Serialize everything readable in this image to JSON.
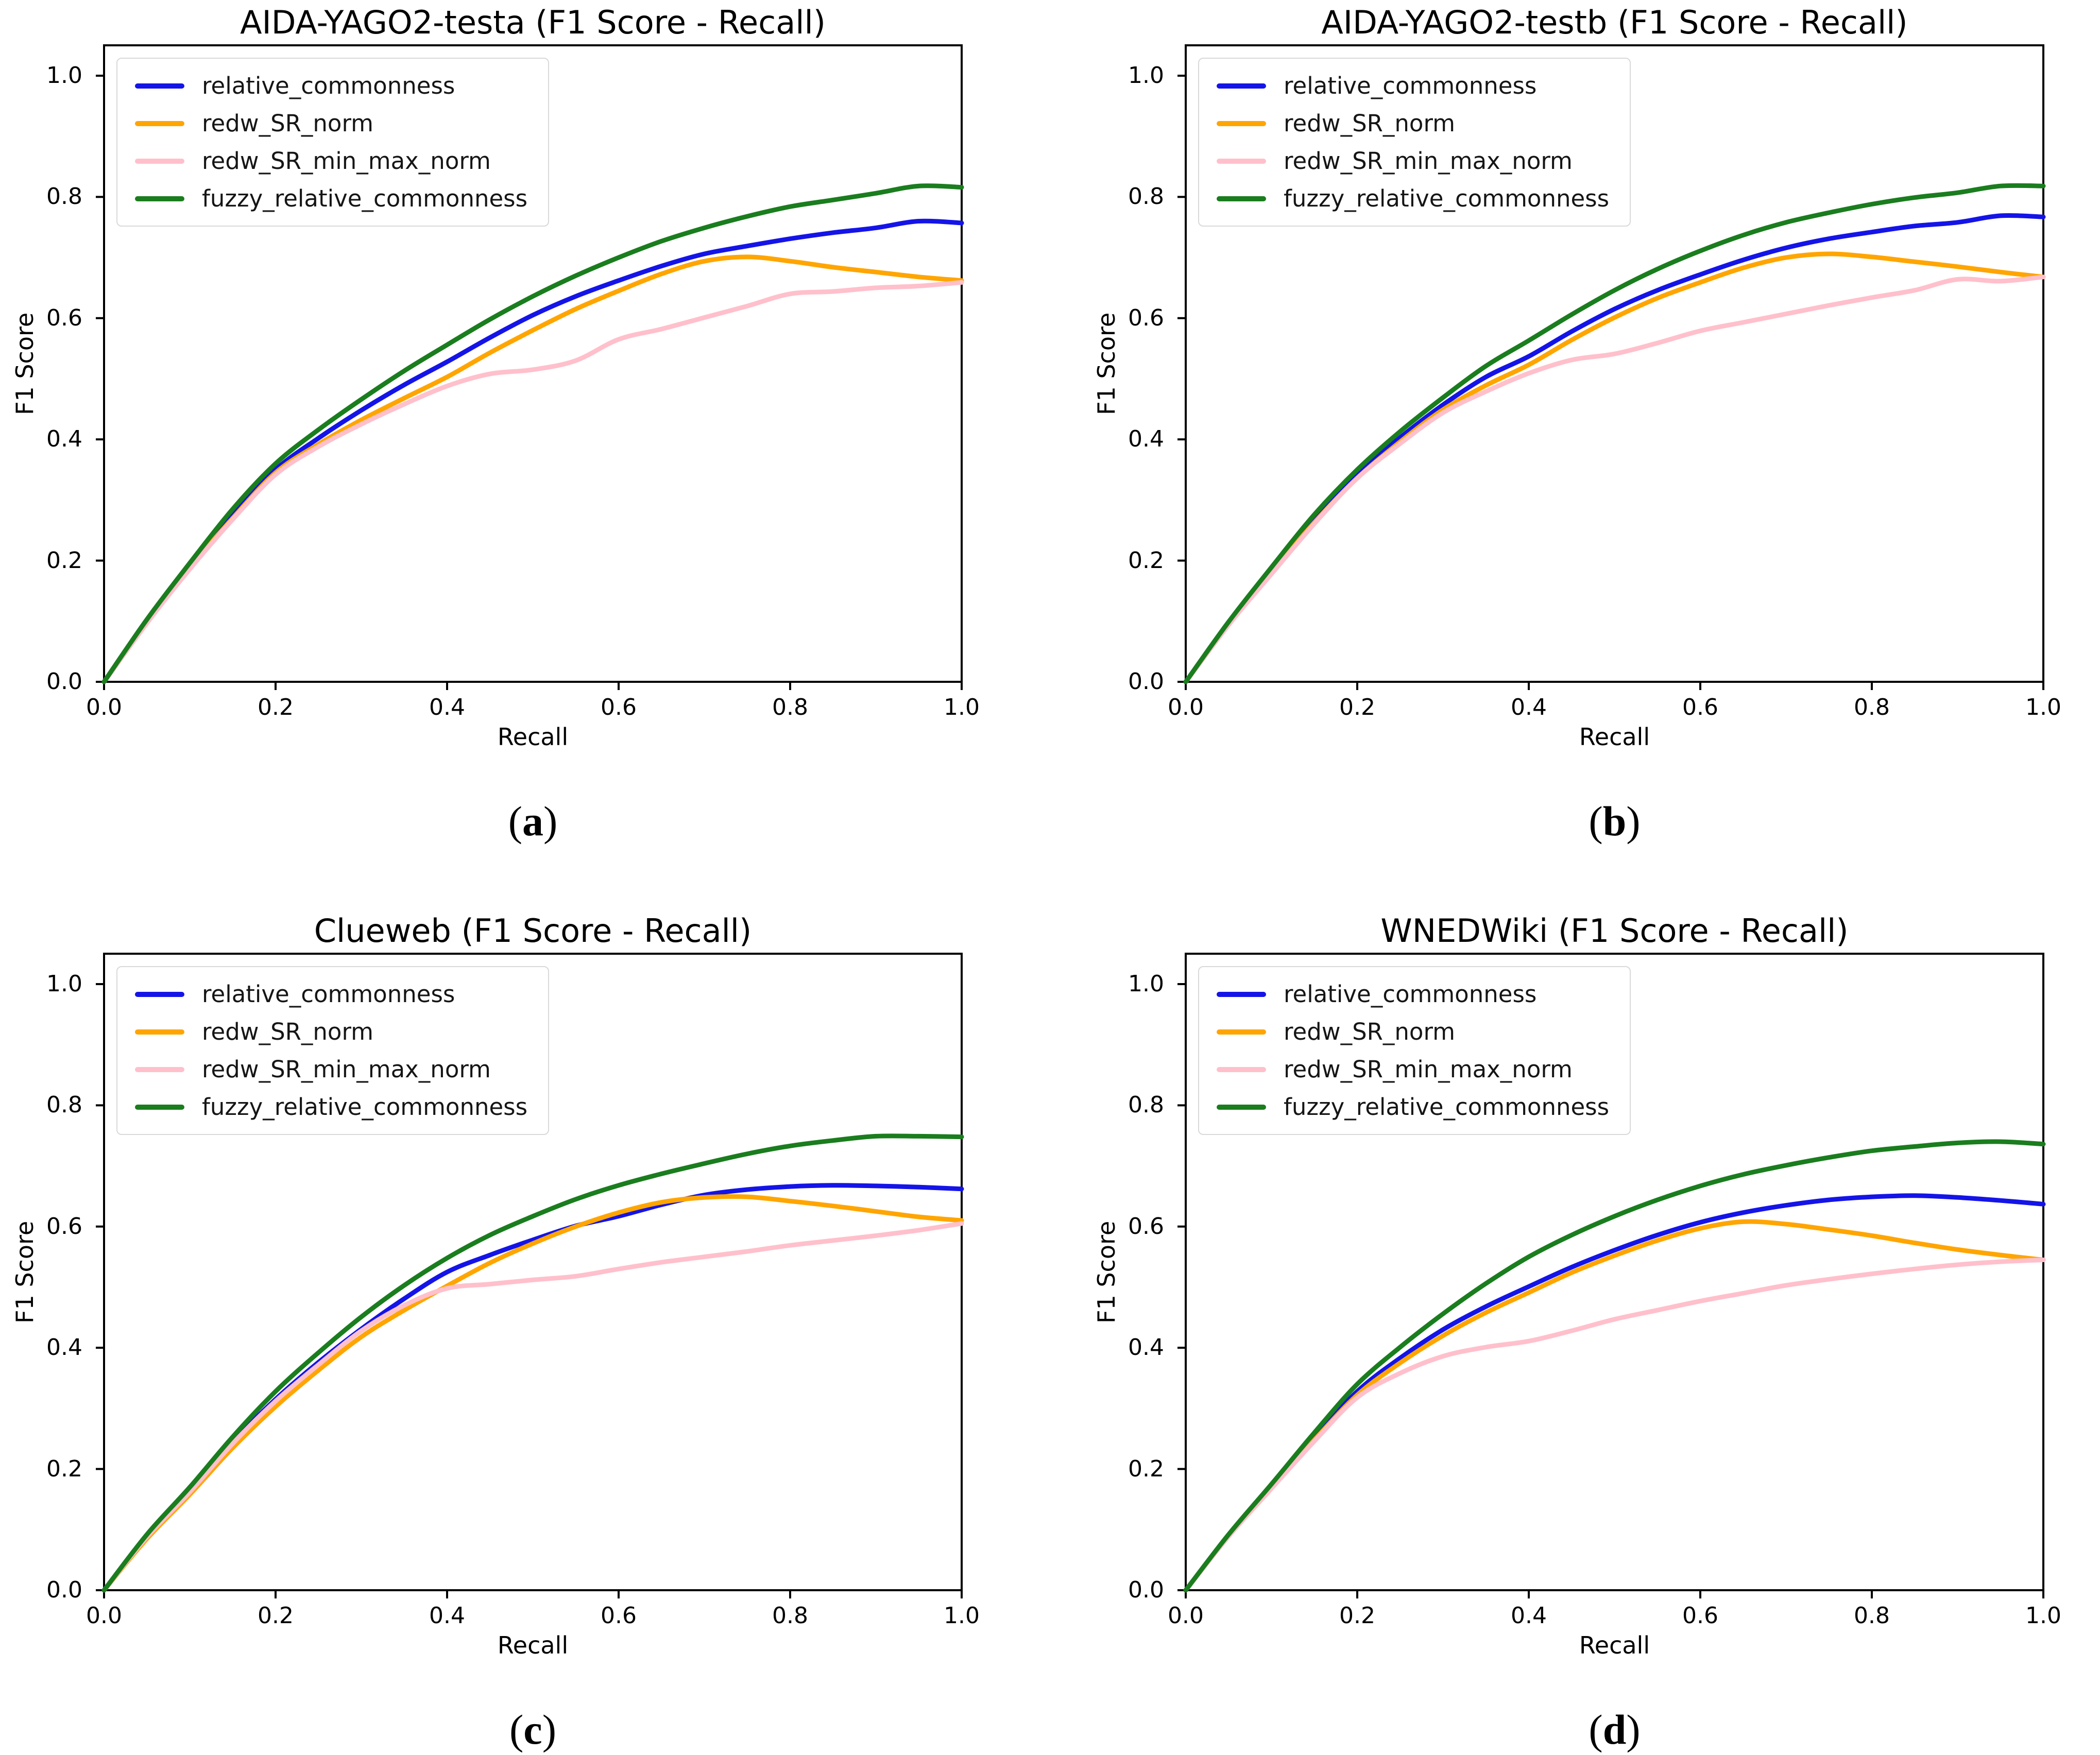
{
  "figure": {
    "background": "#ffffff",
    "layout": "2x2 grid of line charts"
  },
  "axes": {
    "xlabel": "Recall",
    "ylabel": "F1 Score",
    "xticklabels": [
      "0.0",
      "0.2",
      "0.4",
      "0.6",
      "0.8",
      "1.0"
    ],
    "yticklabels": [
      "0.0",
      "0.2",
      "0.4",
      "0.6",
      "0.8",
      "1.0"
    ],
    "xticks": [
      0.0,
      0.2,
      0.4,
      0.6,
      0.8,
      1.0
    ],
    "yticks": [
      0.0,
      0.2,
      0.4,
      0.6,
      0.8,
      1.0
    ],
    "xlim": [
      0.0,
      1.0
    ],
    "ylim": [
      0.0,
      1.05
    ],
    "grid": false,
    "legend_position": "upper left"
  },
  "colors": {
    "relative_commonness": "#1414e8",
    "redw_SR_norm": "#ffa500",
    "redw_SR_min_max_norm": "#ffc0cb",
    "fuzzy_relative_commonness": "#1a7d1e",
    "spine": "#000000",
    "legend_border": "#d9d9d9"
  },
  "chart_data": [
    {
      "type": "line",
      "title": "AIDA-YAGO2-testa (F1 Score - Recall)",
      "caption": "a",
      "xlabel": "Recall",
      "ylabel": "F1 Score",
      "x": [
        0,
        0.05,
        0.1,
        0.15,
        0.2,
        0.25,
        0.3,
        0.35,
        0.4,
        0.45,
        0.5,
        0.55,
        0.6,
        0.65,
        0.7,
        0.75,
        0.8,
        0.85,
        0.9,
        0.95,
        1.0
      ],
      "series": [
        {
          "name": "relative_commonness",
          "color": "#1414e8",
          "values": [
            0,
            0.098,
            0.19,
            0.275,
            0.35,
            0.402,
            0.448,
            0.49,
            0.528,
            0.568,
            0.605,
            0.636,
            0.662,
            0.686,
            0.706,
            0.719,
            0.731,
            0.741,
            0.749,
            0.76,
            0.757
          ]
        },
        {
          "name": "redw_SR_norm",
          "color": "#ffa500",
          "values": [
            0,
            0.097,
            0.188,
            0.27,
            0.345,
            0.392,
            0.432,
            0.468,
            0.503,
            0.543,
            0.58,
            0.615,
            0.645,
            0.673,
            0.694,
            0.701,
            0.694,
            0.684,
            0.676,
            0.668,
            0.662
          ]
        },
        {
          "name": "redw_SR_min_max_norm",
          "color": "#ffc0cb",
          "values": [
            0,
            0.097,
            0.186,
            0.268,
            0.342,
            0.388,
            0.425,
            0.458,
            0.488,
            0.508,
            0.515,
            0.53,
            0.565,
            0.582,
            0.601,
            0.62,
            0.64,
            0.644,
            0.65,
            0.653,
            0.659
          ]
        },
        {
          "name": "fuzzy_relative_commonness",
          "color": "#1a7d1e",
          "values": [
            0,
            0.103,
            0.196,
            0.285,
            0.36,
            0.416,
            0.466,
            0.513,
            0.556,
            0.598,
            0.636,
            0.67,
            0.7,
            0.727,
            0.749,
            0.768,
            0.784,
            0.795,
            0.806,
            0.818,
            0.816
          ]
        }
      ]
    },
    {
      "type": "line",
      "title": "AIDA-YAGO2-testb (F1 Score - Recall)",
      "caption": "b",
      "xlabel": "Recall",
      "ylabel": "F1 Score",
      "x": [
        0,
        0.05,
        0.1,
        0.15,
        0.2,
        0.25,
        0.3,
        0.35,
        0.4,
        0.45,
        0.5,
        0.55,
        0.6,
        0.65,
        0.7,
        0.75,
        0.8,
        0.85,
        0.9,
        0.95,
        1.0
      ],
      "series": [
        {
          "name": "relative_commonness",
          "color": "#1414e8",
          "values": [
            0,
            0.095,
            0.182,
            0.266,
            0.342,
            0.403,
            0.457,
            0.503,
            0.537,
            0.578,
            0.615,
            0.646,
            0.672,
            0.696,
            0.716,
            0.731,
            0.742,
            0.752,
            0.758,
            0.769,
            0.767
          ]
        },
        {
          "name": "redw_SR_norm",
          "color": "#ffa500",
          "values": [
            0,
            0.094,
            0.18,
            0.263,
            0.336,
            0.396,
            0.449,
            0.489,
            0.523,
            0.564,
            0.601,
            0.633,
            0.659,
            0.683,
            0.7,
            0.706,
            0.701,
            0.693,
            0.685,
            0.676,
            0.668
          ]
        },
        {
          "name": "redw_SR_min_max_norm",
          "color": "#ffc0cb",
          "values": [
            0,
            0.094,
            0.178,
            0.261,
            0.336,
            0.393,
            0.444,
            0.479,
            0.509,
            0.531,
            0.541,
            0.559,
            0.579,
            0.593,
            0.607,
            0.621,
            0.634,
            0.646,
            0.664,
            0.661,
            0.668
          ]
        },
        {
          "name": "fuzzy_relative_commonness",
          "color": "#1a7d1e",
          "values": [
            0,
            0.099,
            0.189,
            0.276,
            0.35,
            0.413,
            0.469,
            0.521,
            0.563,
            0.606,
            0.646,
            0.681,
            0.711,
            0.737,
            0.758,
            0.774,
            0.788,
            0.799,
            0.807,
            0.818,
            0.818
          ]
        }
      ]
    },
    {
      "type": "line",
      "title": "Clueweb (F1 Score - Recall)",
      "caption": "c",
      "xlabel": "Recall",
      "ylabel": "F1 Score",
      "x": [
        0,
        0.05,
        0.1,
        0.15,
        0.2,
        0.25,
        0.3,
        0.35,
        0.4,
        0.45,
        0.5,
        0.55,
        0.6,
        0.65,
        0.7,
        0.75,
        0.8,
        0.85,
        0.9,
        0.95,
        1.0
      ],
      "series": [
        {
          "name": "relative_commonness",
          "color": "#1414e8",
          "values": [
            0,
            0.089,
            0.165,
            0.245,
            0.315,
            0.376,
            0.431,
            0.481,
            0.525,
            0.553,
            0.578,
            0.601,
            0.617,
            0.636,
            0.652,
            0.661,
            0.666,
            0.668,
            0.667,
            0.665,
            0.662
          ]
        },
        {
          "name": "redw_SR_norm",
          "color": "#ffa500",
          "values": [
            0,
            0.085,
            0.158,
            0.235,
            0.303,
            0.363,
            0.418,
            0.462,
            0.502,
            0.54,
            0.572,
            0.6,
            0.623,
            0.64,
            0.648,
            0.649,
            0.642,
            0.634,
            0.625,
            0.616,
            0.61
          ]
        },
        {
          "name": "redw_SR_min_max_norm",
          "color": "#ffc0cb",
          "values": [
            0,
            0.088,
            0.162,
            0.242,
            0.312,
            0.372,
            0.428,
            0.47,
            0.498,
            0.505,
            0.512,
            0.518,
            0.53,
            0.541,
            0.55,
            0.559,
            0.569,
            0.577,
            0.585,
            0.594,
            0.605
          ]
        },
        {
          "name": "fuzzy_relative_commonness",
          "color": "#1a7d1e",
          "values": [
            0,
            0.092,
            0.17,
            0.253,
            0.328,
            0.392,
            0.451,
            0.503,
            0.548,
            0.586,
            0.617,
            0.645,
            0.668,
            0.687,
            0.704,
            0.72,
            0.733,
            0.742,
            0.749,
            0.749,
            0.748
          ]
        }
      ]
    },
    {
      "type": "line",
      "title": "WNEDWiki (F1 Score - Recall)",
      "caption": "d",
      "xlabel": "Recall",
      "ylabel": "F1 Score",
      "x": [
        0,
        0.05,
        0.1,
        0.15,
        0.2,
        0.25,
        0.3,
        0.35,
        0.4,
        0.45,
        0.5,
        0.55,
        0.6,
        0.65,
        0.7,
        0.75,
        0.8,
        0.85,
        0.9,
        0.95,
        1.0
      ],
      "series": [
        {
          "name": "relative_commonness",
          "color": "#1414e8",
          "values": [
            0,
            0.09,
            0.17,
            0.252,
            0.328,
            0.383,
            0.43,
            0.468,
            0.501,
            0.533,
            0.561,
            0.586,
            0.607,
            0.623,
            0.635,
            0.644,
            0.649,
            0.651,
            0.648,
            0.643,
            0.637
          ]
        },
        {
          "name": "redw_SR_norm",
          "color": "#ffa500",
          "values": [
            0,
            0.089,
            0.168,
            0.248,
            0.322,
            0.375,
            0.42,
            0.458,
            0.491,
            0.524,
            0.552,
            0.577,
            0.597,
            0.608,
            0.604,
            0.595,
            0.585,
            0.573,
            0.562,
            0.553,
            0.545
          ]
        },
        {
          "name": "redw_SR_min_max_norm",
          "color": "#ffc0cb",
          "values": [
            0,
            0.089,
            0.168,
            0.246,
            0.318,
            0.358,
            0.386,
            0.401,
            0.411,
            0.428,
            0.447,
            0.462,
            0.477,
            0.49,
            0.503,
            0.513,
            0.522,
            0.53,
            0.537,
            0.542,
            0.545
          ]
        },
        {
          "name": "fuzzy_relative_commonness",
          "color": "#1a7d1e",
          "values": [
            0,
            0.092,
            0.175,
            0.26,
            0.34,
            0.401,
            0.456,
            0.506,
            0.55,
            0.586,
            0.617,
            0.644,
            0.667,
            0.686,
            0.701,
            0.714,
            0.725,
            0.732,
            0.738,
            0.74,
            0.736
          ]
        }
      ]
    }
  ]
}
